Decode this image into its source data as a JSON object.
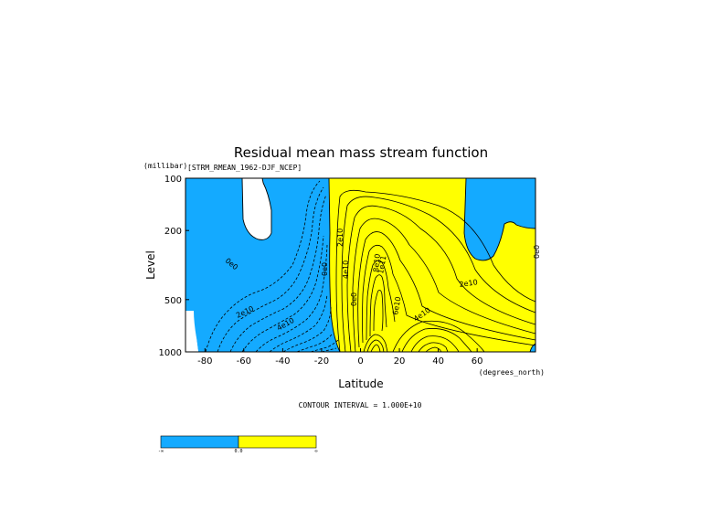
{
  "chart_data": {
    "type": "contour",
    "title": "Residual mean mass stream function",
    "subtitle": "[STRM_RMEAN_1962-DJF_NCEP]",
    "xlabel": "Latitude",
    "xunits": "(degrees_north)",
    "ylabel": "Level",
    "yunits": "(millibar)",
    "xlim": [
      -90,
      90
    ],
    "ylim": [
      1000,
      100
    ],
    "y_scale": "log",
    "x_ticks": [
      "-80",
      "-60",
      "-40",
      "-20",
      "0",
      "20",
      "40",
      "60"
    ],
    "x_tick_values": [
      -80,
      -60,
      -40,
      -20,
      0,
      20,
      40,
      60
    ],
    "y_ticks": [
      "100",
      "200",
      "500",
      "1000"
    ],
    "y_tick_values": [
      100,
      200,
      500,
      1000
    ],
    "contour_interval_text": "CONTOUR INTERVAL = 1.000E+10",
    "contour_labels": [
      "0e0",
      "2e10",
      "4e10",
      "0e0",
      "2e10",
      "4e10",
      "0e0",
      "1e11",
      "8e10",
      "6e10",
      "4e10",
      "2e10",
      "0e0"
    ],
    "fill_colors": {
      "negative": "#14aaff",
      "positive": "#ffff00"
    },
    "colorbar": {
      "labels": [
        "-∞",
        "0.0",
        "∞"
      ],
      "colors": [
        "#14aaff",
        "#ffff00"
      ]
    },
    "features": {
      "north_hemisphere_cell_max": "1e11 near 10N, 400-500 mb",
      "south_hemisphere_cell": "negative, dashed contours, -80 to 0"
    }
  }
}
